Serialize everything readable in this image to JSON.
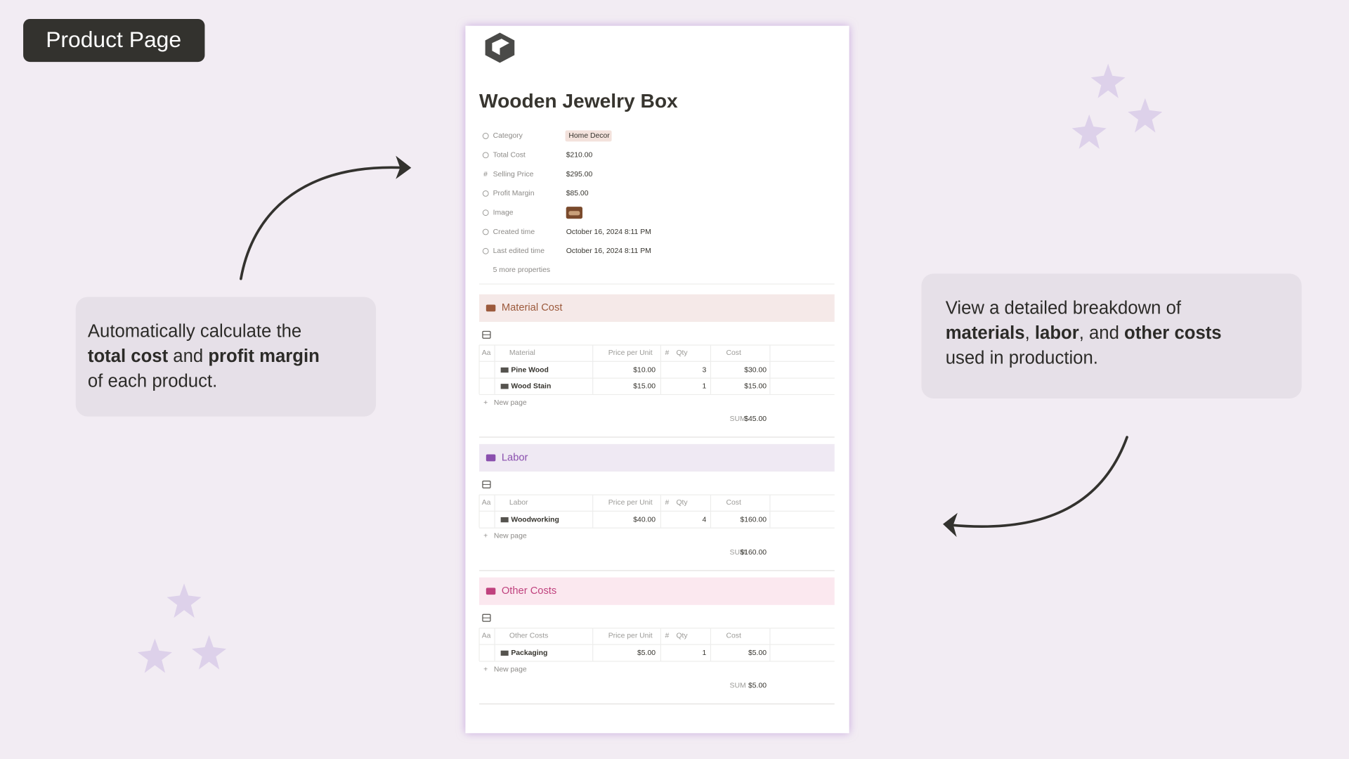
{
  "badge": "Product Page",
  "left_callout": {
    "lines": [
      [
        {
          "text": "Automatically calculate the",
          "bold": false
        }
      ],
      [
        {
          "text": "total cost",
          "bold": true
        },
        {
          "text": " and ",
          "bold": false
        },
        {
          "text": "profit margin",
          "bold": true
        }
      ],
      [
        {
          "text": "of each product.",
          "bold": false
        }
      ]
    ]
  },
  "right_callout": {
    "lines": [
      [
        {
          "text": "View a detailed breakdown of",
          "bold": false
        }
      ],
      [
        {
          "text": "materials",
          "bold": true
        },
        {
          "text": ", ",
          "bold": false
        },
        {
          "text": "labor",
          "bold": true
        },
        {
          "text": ", and ",
          "bold": false
        },
        {
          "text": "other costs",
          "bold": true
        }
      ],
      [
        {
          "text": "used in production.",
          "bold": false
        }
      ]
    ]
  },
  "page": {
    "title": "Wooden Jewelry Box",
    "properties": [
      {
        "label": "Category",
        "value": "Home Decor",
        "tag": true
      },
      {
        "label": "Total Cost",
        "value": "$210.00"
      },
      {
        "label": "Selling Price",
        "value": "$295.00",
        "icon": "#"
      },
      {
        "label": "Profit Margin",
        "value": "$85.00"
      },
      {
        "label": "Image"
      },
      {
        "label": "Created time",
        "value": "October 16, 2024 8:11 PM"
      },
      {
        "label": "Last edited time",
        "value": "October 16, 2024 8:11 PM"
      }
    ],
    "more": "5 more properties",
    "name_icon": "Aa",
    "new_page": "New page",
    "sum_label": "SUM",
    "sections": [
      {
        "title": "Material Cost",
        "color": "#9c5a3c",
        "bg": "#f5e9e8",
        "columns": [
          {
            "name": "Material"
          },
          {
            "name": "Price per Unit"
          },
          {
            "name": "Qty",
            "icon": "#"
          },
          {
            "name": "Cost"
          }
        ],
        "rows": [
          [
            "Pine Wood",
            "$10.00",
            3,
            "$30.00"
          ],
          [
            "Wood Stain",
            "$15.00",
            1,
            "$15.00"
          ]
        ],
        "sum": "$45.00"
      },
      {
        "title": "Labor",
        "color": "#8a4fae",
        "bg": "#efe9f3",
        "columns": [
          {
            "name": "Labor"
          },
          {
            "name": "Price per Unit"
          },
          {
            "name": "Qty",
            "icon": "#"
          },
          {
            "name": "Cost"
          }
        ],
        "rows": [
          [
            "Woodworking",
            "$40.00",
            4,
            "$160.00"
          ]
        ],
        "sum": "$160.00"
      },
      {
        "title": "Other Costs",
        "color": "#c0427e",
        "bg": "#fbe8ef",
        "columns": [
          {
            "name": "Other Costs"
          },
          {
            "name": "Price per Unit"
          },
          {
            "name": "Qty",
            "icon": "#"
          },
          {
            "name": "Cost"
          }
        ],
        "rows": [
          [
            "Packaging",
            "$5.00",
            1,
            "$5.00"
          ]
        ],
        "sum": "$5.00"
      }
    ]
  }
}
